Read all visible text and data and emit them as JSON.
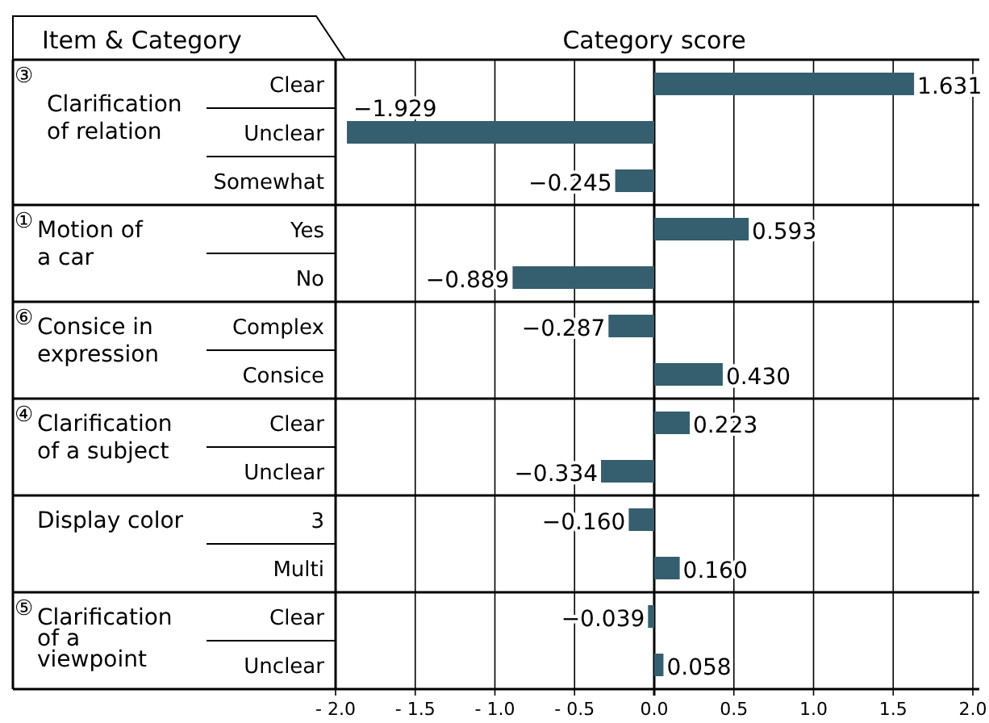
{
  "chart_data": {
    "type": "bar",
    "orientation": "horizontal",
    "title": "Category score",
    "ylabel": "Item & Category",
    "categories": [
      "Clear",
      "Unclear",
      "Somewhat",
      "Yes",
      "No",
      "Complex",
      "Consice",
      "Clear",
      "Unclear",
      "3",
      "Multi",
      "Clear",
      "Unclear"
    ],
    "values": [
      1.631,
      -1.929,
      -0.245,
      0.593,
      -0.889,
      -0.287,
      0.43,
      0.223,
      -0.334,
      -0.16,
      0.16,
      -0.039,
      0.058
    ],
    "value_labels": [
      "1.631",
      "−1.929",
      "−0.245",
      "0.593",
      "−0.889",
      "−0.287",
      "0.430",
      "0.223",
      "−0.334",
      "−0.160",
      "0.160",
      "−0.039",
      "0.058"
    ],
    "color": "#355f6e",
    "xlim": [
      -2,
      2
    ],
    "xticks": [
      {
        "value": -2,
        "label": "- 2.0"
      },
      {
        "value": -1.5,
        "label": "- 1.5"
      },
      {
        "value": -1,
        "label": "- 1.0"
      },
      {
        "value": -0.5,
        "label": "- 0.5"
      },
      {
        "value": 0,
        "label": "0.0"
      },
      {
        "value": 0.5,
        "label": "0.5"
      },
      {
        "value": 1,
        "label": "1.0"
      },
      {
        "value": 1.5,
        "label": "1.5"
      },
      {
        "value": 2,
        "label": "2.0"
      }
    ],
    "grid": "x",
    "annotations": [
      "③Clarification\nof relation",
      "①Motion of\na car",
      "⑥Consice in\nexpression",
      "④Clarification\nof a subject",
      "Display color",
      "⑤Clarification\nof a\nviewpoint"
    ]
  }
}
